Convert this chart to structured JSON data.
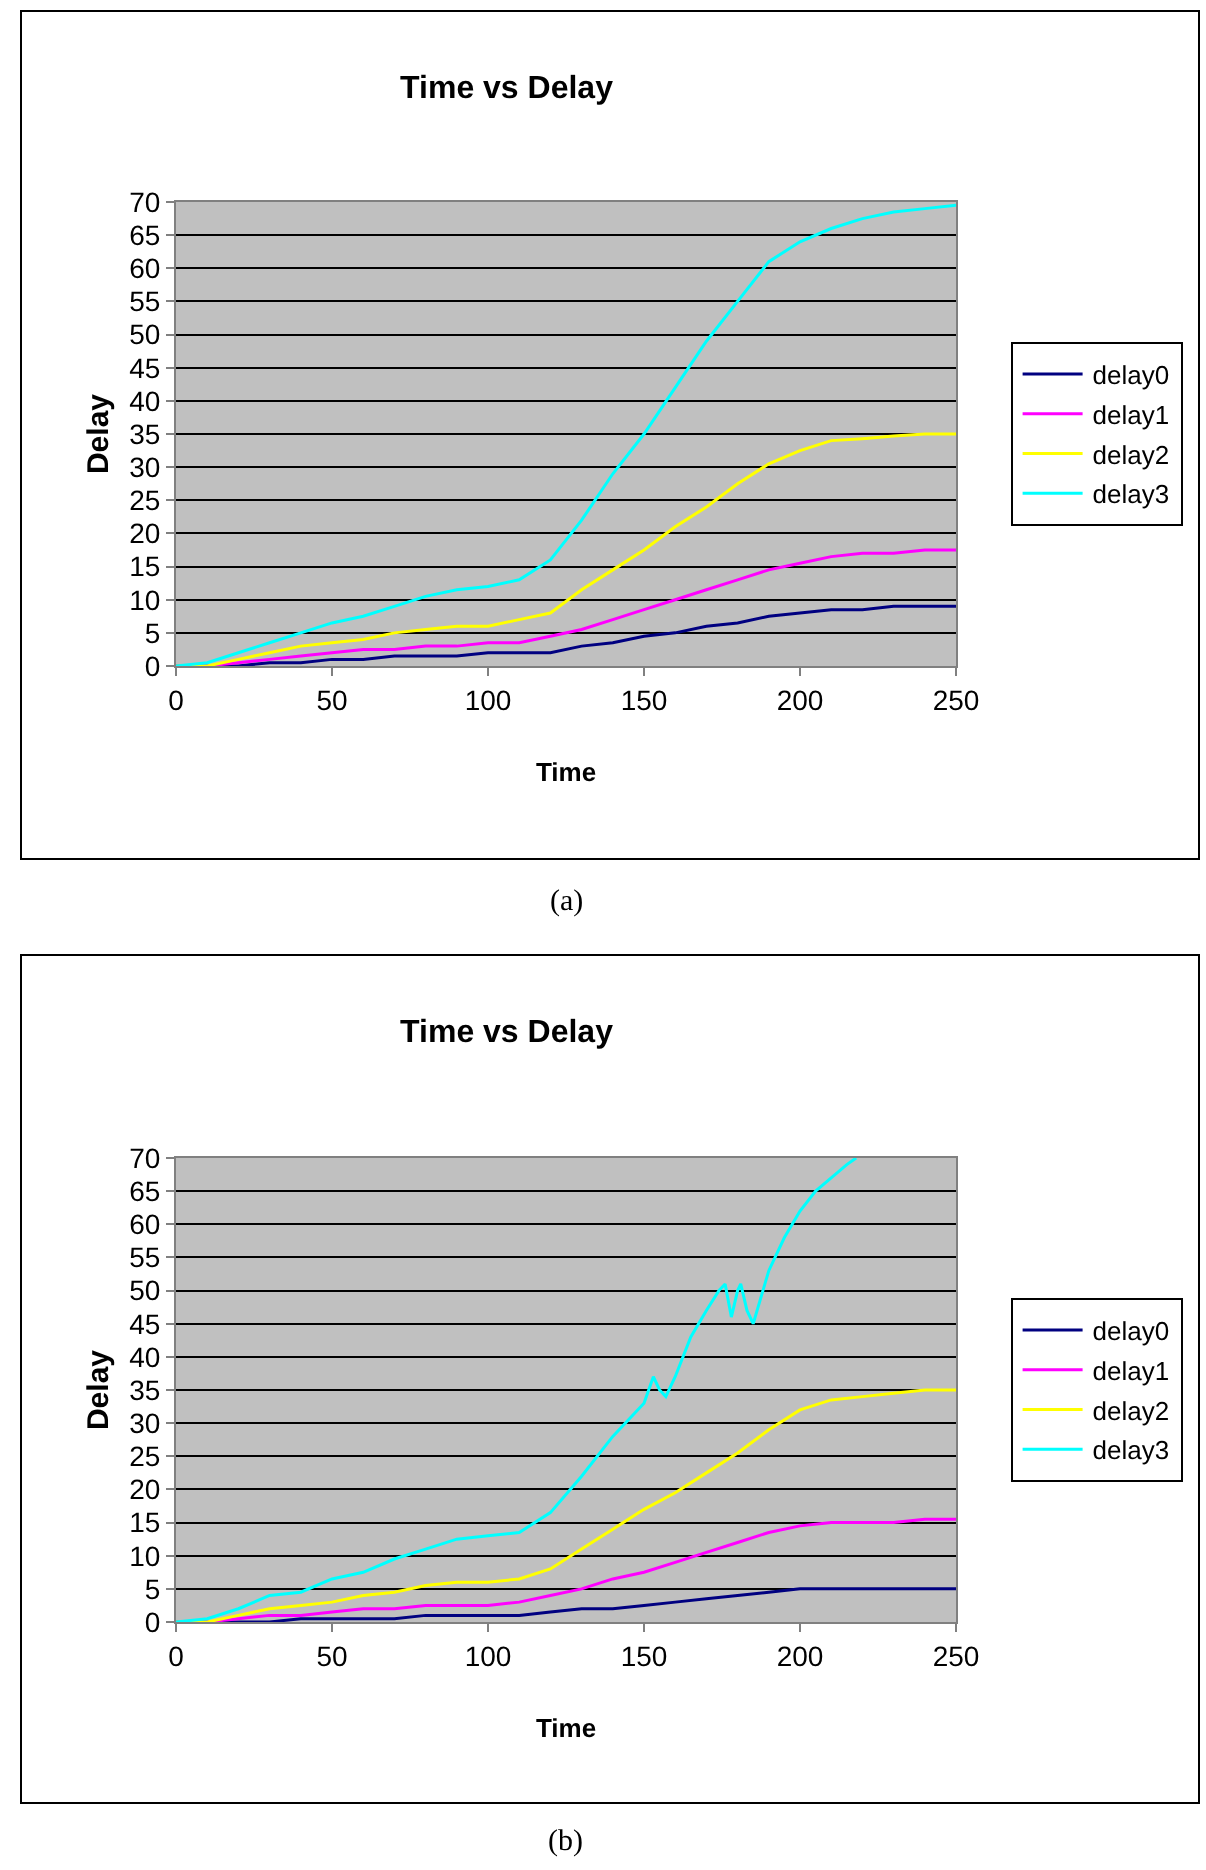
{
  "chart_data": [
    {
      "type": "line",
      "title": "Time vs Delay",
      "xlabel": "Time",
      "ylabel": "Delay",
      "xlim": [
        0,
        250
      ],
      "xticks": [
        0,
        50,
        100,
        150,
        200,
        250
      ],
      "ylim": [
        0,
        70
      ],
      "yticks": [
        0,
        5,
        10,
        15,
        20,
        25,
        30,
        35,
        40,
        45,
        50,
        55,
        60,
        65,
        70
      ],
      "grid": "y",
      "legend": "right",
      "marker": "none",
      "annotations": [
        "(a)"
      ],
      "x": [
        0,
        10,
        20,
        30,
        40,
        50,
        60,
        70,
        80,
        90,
        100,
        110,
        120,
        130,
        140,
        150,
        160,
        170,
        180,
        190,
        200,
        210,
        220,
        230,
        240,
        250
      ],
      "series": [
        {
          "name": "delay0",
          "color": "#000080",
          "values": [
            0,
            0,
            0,
            0.5,
            0.5,
            1,
            1,
            1.5,
            1.5,
            1.5,
            2,
            2,
            2,
            3,
            3.5,
            4.5,
            5,
            6,
            6.5,
            7.5,
            8,
            8.5,
            8.5,
            9,
            9,
            9
          ]
        },
        {
          "name": "delay1",
          "color": "#ff00ff",
          "values": [
            0,
            0,
            0.5,
            1,
            1.5,
            2,
            2.5,
            2.5,
            3,
            3,
            3.5,
            3.5,
            4.5,
            5.5,
            7,
            8.5,
            10,
            11.5,
            13,
            14.5,
            15.5,
            16.5,
            17,
            17,
            17.5,
            17.5
          ]
        },
        {
          "name": "delay2",
          "color": "#ffff00",
          "values": [
            0,
            0,
            1,
            2,
            3,
            3.5,
            4,
            5,
            5.5,
            6,
            6,
            7,
            8,
            11.5,
            14.5,
            17.5,
            21,
            24,
            27.5,
            30.5,
            32.5,
            34,
            34.3,
            34.7,
            35,
            35
          ]
        },
        {
          "name": "delay3",
          "color": "#00ffff",
          "values": [
            0,
            0.5,
            2,
            3.5,
            5,
            6.5,
            7.5,
            9,
            10.5,
            11.5,
            12,
            13,
            16,
            22,
            29,
            35,
            42,
            49,
            55,
            61,
            64,
            66,
            67.5,
            68.5,
            69,
            69.5
          ]
        }
      ]
    },
    {
      "type": "line",
      "title": "Time vs Delay",
      "xlabel": "Time",
      "ylabel": "Delay",
      "xlim": [
        0,
        250
      ],
      "xticks": [
        0,
        50,
        100,
        150,
        200,
        250
      ],
      "ylim": [
        0,
        70
      ],
      "yticks": [
        0,
        5,
        10,
        15,
        20,
        25,
        30,
        35,
        40,
        45,
        50,
        55,
        60,
        65,
        70
      ],
      "grid": "y",
      "legend": "right",
      "marker": "none",
      "annotations": [
        "(b)"
      ],
      "x": [
        0,
        10,
        20,
        30,
        40,
        50,
        60,
        70,
        80,
        90,
        100,
        110,
        120,
        130,
        140,
        150,
        160,
        170,
        180,
        190,
        200,
        210,
        220,
        230,
        240,
        250
      ],
      "series": [
        {
          "name": "delay0",
          "color": "#000080",
          "values": [
            0,
            0,
            0,
            0,
            0.5,
            0.5,
            0.5,
            0.5,
            1,
            1,
            1,
            1,
            1.5,
            2,
            2,
            2.5,
            3,
            3.5,
            4,
            4.5,
            5,
            5,
            5,
            5,
            5,
            5
          ]
        },
        {
          "name": "delay1",
          "color": "#ff00ff",
          "values": [
            0,
            0,
            0.5,
            1,
            1,
            1.5,
            2,
            2,
            2.5,
            2.5,
            2.5,
            3,
            4,
            5,
            6.5,
            7.5,
            9,
            10.5,
            12,
            13.5,
            14.5,
            15,
            15,
            15,
            15.5,
            15.5
          ]
        },
        {
          "name": "delay2",
          "color": "#ffff00",
          "values": [
            0,
            0,
            1,
            2,
            2.5,
            3,
            4,
            4.5,
            5.5,
            6,
            6,
            6.5,
            8,
            11,
            14,
            17,
            19.5,
            22.5,
            25.5,
            29,
            32,
            33.5,
            34,
            34.5,
            35,
            35
          ]
        },
        {
          "name": "delay3",
          "color": "#00ffff",
          "x": [
            0,
            10,
            20,
            30,
            40,
            50,
            60,
            70,
            80,
            90,
            100,
            110,
            120,
            130,
            140,
            150,
            153,
            155,
            157,
            160,
            165,
            170,
            174,
            176,
            178,
            180,
            181,
            183,
            185,
            190,
            195,
            200,
            205,
            210,
            215,
            218
          ],
          "values": [
            0,
            0.5,
            2,
            4,
            4.5,
            6.5,
            7.5,
            9.5,
            11,
            12.5,
            13,
            13.5,
            16.5,
            22,
            28,
            33,
            37,
            35,
            34,
            37,
            43,
            47,
            50,
            51,
            46,
            50,
            51,
            47,
            45,
            53,
            58,
            62,
            65,
            67,
            69,
            70
          ]
        }
      ]
    }
  ]
}
